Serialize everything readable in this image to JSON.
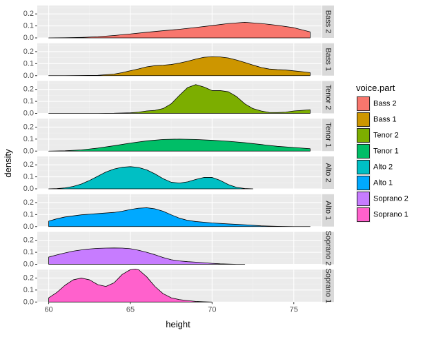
{
  "chart_data": {
    "type": "area",
    "xlabel": "height",
    "ylabel": "density",
    "xlim": [
      59.3,
      76.7
    ],
    "ylim": [
      0,
      0.27
    ],
    "x_ticks": [
      60,
      65,
      70,
      75
    ],
    "y_ticks": [
      0.0,
      0.1,
      0.2
    ],
    "y_tick_labels": [
      "0.0",
      "0.1",
      "0.2"
    ],
    "grid": true,
    "facets": "rows",
    "legend": {
      "title": "voice.part",
      "position": "right",
      "entries": [
        "Bass 2",
        "Bass 1",
        "Tenor 2",
        "Tenor 1",
        "Alto 2",
        "Alto 1",
        "Soprano 2",
        "Soprano 1"
      ]
    },
    "series": [
      {
        "name": "Bass 2",
        "strip_label": "Bass 2",
        "color": "#F8766D",
        "x": [
          60,
          61,
          62,
          63,
          64,
          65,
          66,
          67,
          68,
          69,
          70,
          71,
          72,
          73,
          74,
          75,
          76
        ],
        "y": [
          0.0,
          0.001,
          0.004,
          0.01,
          0.02,
          0.033,
          0.047,
          0.06,
          0.072,
          0.087,
          0.103,
          0.12,
          0.13,
          0.12,
          0.105,
          0.085,
          0.05
        ]
      },
      {
        "name": "Bass 1",
        "strip_label": "Bass 1",
        "color": "#CD9600",
        "x": [
          60,
          61,
          62,
          63,
          64,
          64.5,
          65,
          65.5,
          66,
          66.5,
          67,
          67.5,
          68,
          68.5,
          69,
          69.5,
          70,
          70.5,
          71,
          71.5,
          72,
          72.5,
          73,
          73.5,
          74,
          74.5,
          75,
          75.5,
          76
        ],
        "y": [
          0.0,
          0.0,
          0.001,
          0.003,
          0.013,
          0.025,
          0.041,
          0.056,
          0.073,
          0.083,
          0.087,
          0.093,
          0.105,
          0.12,
          0.138,
          0.153,
          0.158,
          0.156,
          0.147,
          0.13,
          0.11,
          0.088,
          0.068,
          0.055,
          0.05,
          0.047,
          0.04,
          0.033,
          0.025
        ]
      },
      {
        "name": "Tenor 2",
        "strip_label": "Tenor 2",
        "color": "#7CAE00",
        "x": [
          60,
          61,
          62,
          63,
          64,
          65,
          65.5,
          66,
          66.5,
          67,
          67.5,
          68,
          68.5,
          69,
          69.5,
          70,
          70.5,
          71,
          71.5,
          72,
          72.5,
          73,
          73.5,
          74,
          74.5,
          75,
          75.5,
          76
        ],
        "y": [
          0.0,
          0.0,
          0.0,
          0.0,
          0.001,
          0.005,
          0.01,
          0.02,
          0.025,
          0.04,
          0.08,
          0.15,
          0.215,
          0.24,
          0.22,
          0.19,
          0.19,
          0.18,
          0.14,
          0.08,
          0.04,
          0.02,
          0.008,
          0.007,
          0.01,
          0.02,
          0.025,
          0.03
        ]
      },
      {
        "name": "Tenor 1",
        "strip_label": "Tenor 1",
        "color": "#00BE67",
        "x": [
          60,
          61,
          62,
          63,
          64,
          65,
          66,
          67,
          68,
          69,
          70,
          71,
          72,
          73,
          74,
          75,
          76
        ],
        "y": [
          0.0,
          0.003,
          0.01,
          0.025,
          0.045,
          0.067,
          0.085,
          0.097,
          0.1,
          0.097,
          0.09,
          0.082,
          0.07,
          0.055,
          0.04,
          0.03,
          0.02
        ]
      },
      {
        "name": "Alto 2",
        "strip_label": "Alto 2",
        "color": "#00BFC4",
        "x": [
          60,
          60.5,
          61,
          61.5,
          62,
          62.5,
          63,
          63.5,
          64,
          64.5,
          65,
          65.5,
          66,
          66.5,
          67,
          67.5,
          68,
          68.5,
          69,
          69.5,
          70,
          70.5,
          71,
          71.5,
          72,
          72.5
        ],
        "y": [
          0.0,
          0.002,
          0.008,
          0.02,
          0.04,
          0.07,
          0.105,
          0.14,
          0.165,
          0.18,
          0.185,
          0.178,
          0.158,
          0.125,
          0.085,
          0.055,
          0.048,
          0.058,
          0.078,
          0.095,
          0.095,
          0.07,
          0.035,
          0.012,
          0.003,
          0.0
        ]
      },
      {
        "name": "Alto 1",
        "strip_label": "Alto 1",
        "color": "#00A9FF",
        "x": [
          60,
          60.5,
          61,
          62,
          63,
          64,
          64.5,
          65,
          65.5,
          66,
          66.5,
          67,
          67.5,
          68,
          68.5,
          69,
          70,
          71,
          72,
          73,
          74,
          75,
          76
        ],
        "y": [
          0.045,
          0.065,
          0.08,
          0.098,
          0.108,
          0.118,
          0.128,
          0.142,
          0.153,
          0.157,
          0.148,
          0.128,
          0.098,
          0.07,
          0.052,
          0.042,
          0.03,
          0.022,
          0.015,
          0.006,
          0.002,
          0.0,
          0.0
        ]
      },
      {
        "name": "Soprano 2",
        "strip_label": "Soprano 2",
        "color": "#C77CFF",
        "x": [
          60,
          60.5,
          61,
          61.5,
          62,
          62.5,
          63,
          63.5,
          64,
          64.5,
          65,
          65.5,
          66,
          66.5,
          67,
          67.5,
          68,
          68.5,
          69,
          69.5,
          70,
          70.5,
          71,
          71.5,
          72
        ],
        "y": [
          0.06,
          0.078,
          0.095,
          0.11,
          0.12,
          0.128,
          0.133,
          0.135,
          0.136,
          0.135,
          0.13,
          0.117,
          0.1,
          0.08,
          0.057,
          0.038,
          0.028,
          0.022,
          0.018,
          0.013,
          0.008,
          0.004,
          0.002,
          0.0,
          0.0
        ]
      },
      {
        "name": "Soprano 1",
        "strip_label": "Soprano 1",
        "color": "#FF61CC",
        "x": [
          60,
          60.5,
          61,
          61.5,
          62,
          62.5,
          63,
          63.5,
          64,
          64.5,
          65,
          65.3,
          65.5,
          66,
          66.5,
          67,
          67.5,
          68,
          68.5,
          69,
          69.5,
          70
        ],
        "y": [
          0.035,
          0.08,
          0.14,
          0.185,
          0.2,
          0.185,
          0.145,
          0.13,
          0.16,
          0.23,
          0.27,
          0.275,
          0.27,
          0.21,
          0.13,
          0.07,
          0.035,
          0.02,
          0.012,
          0.005,
          0.002,
          0.0
        ]
      }
    ]
  }
}
